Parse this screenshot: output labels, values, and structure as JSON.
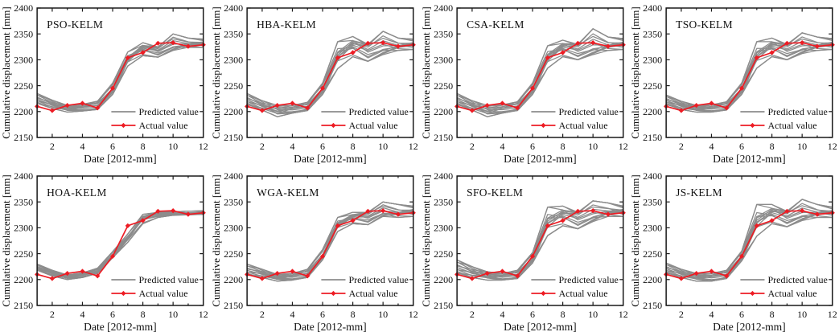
{
  "figure": {
    "description": "Grid of eight cumulative displacement prediction charts for KELM model variants"
  },
  "chart_data": {
    "type": "line",
    "grid_rows": 2,
    "grid_cols": 4,
    "x": [
      1,
      2,
      3,
      4,
      5,
      6,
      7,
      8,
      9,
      10,
      11,
      12
    ],
    "xlabel": "Date [2012-mm]",
    "ylabel": "Cumulative displacement [mm]",
    "xlim": [
      1,
      12
    ],
    "ylim": [
      2150,
      2400
    ],
    "x_ticks": [
      2,
      4,
      6,
      8,
      10,
      12
    ],
    "x_minor_ticks": [
      1,
      3,
      5,
      7,
      9,
      11
    ],
    "y_ticks": [
      2150,
      2200,
      2250,
      2300,
      2350,
      2400
    ],
    "grid_lines": "off",
    "legend": [
      "Predicted value",
      "Actual value"
    ],
    "legend_position": "lower-right",
    "colors": {
      "predicted": "#8c8c8c",
      "actual": "#ed1c24",
      "axis": "#1a1a1a",
      "text": "#111111",
      "background": "#ffffff"
    },
    "actual": [
      2210,
      2202,
      2212,
      2216,
      2207,
      2245,
      2304,
      2314,
      2332,
      2333,
      2326,
      2329
    ],
    "predicted_ensemble_lines": 14,
    "subplots": [
      {
        "title": "PSO-KELM",
        "predicted_band_min": [
          2216,
          2206,
          2199,
          2201,
          2204,
          2233,
          2288,
          2308,
          2305,
          2318,
          2324,
          2324
        ],
        "predicted_band_max": [
          2235,
          2222,
          2212,
          2214,
          2220,
          2255,
          2315,
          2333,
          2325,
          2350,
          2342,
          2340
        ]
      },
      {
        "title": "HBA-KELM",
        "predicted_band_min": [
          2214,
          2203,
          2190,
          2197,
          2202,
          2233,
          2283,
          2306,
          2297,
          2310,
          2318,
          2320
        ],
        "predicted_band_max": [
          2235,
          2221,
          2212,
          2212,
          2218,
          2255,
          2335,
          2345,
          2330,
          2355,
          2342,
          2340
        ]
      },
      {
        "title": "CSA-KELM",
        "predicted_band_min": [
          2214,
          2203,
          2190,
          2197,
          2202,
          2233,
          2284,
          2306,
          2300,
          2310,
          2318,
          2320
        ],
        "predicted_band_max": [
          2235,
          2221,
          2212,
          2213,
          2219,
          2255,
          2327,
          2338,
          2330,
          2360,
          2344,
          2341
        ]
      },
      {
        "title": "TSO-KELM",
        "predicted_band_min": [
          2214,
          2204,
          2199,
          2199,
          2203,
          2233,
          2284,
          2306,
          2300,
          2312,
          2318,
          2320
        ],
        "predicted_band_max": [
          2232,
          2220,
          2212,
          2213,
          2219,
          2255,
          2335,
          2342,
          2330,
          2352,
          2344,
          2341
        ]
      },
      {
        "title": "HOA-KELM",
        "predicted_band_min": [
          2218,
          2207,
          2200,
          2204,
          2212,
          2242,
          2272,
          2308,
          2320,
          2324,
          2325,
          2326
        ],
        "predicted_band_max": [
          2230,
          2218,
          2209,
          2213,
          2222,
          2254,
          2288,
          2326,
          2330,
          2331,
          2332,
          2333
        ]
      },
      {
        "title": "WGA-KELM",
        "predicted_band_min": [
          2209,
          2204,
          2197,
          2199,
          2204,
          2238,
          2293,
          2308,
          2306,
          2322,
          2320,
          2322
        ],
        "predicted_band_max": [
          2230,
          2220,
          2210,
          2212,
          2220,
          2258,
          2320,
          2330,
          2330,
          2350,
          2345,
          2342
        ]
      },
      {
        "title": "SFO-KELM",
        "predicted_band_min": [
          2213,
          2204,
          2199,
          2199,
          2202,
          2232,
          2285,
          2304,
          2298,
          2312,
          2322,
          2322
        ],
        "predicted_band_max": [
          2238,
          2225,
          2215,
          2212,
          2218,
          2252,
          2340,
          2342,
          2330,
          2352,
          2348,
          2342
        ]
      },
      {
        "title": "JS-KELM",
        "predicted_band_min": [
          2213,
          2204,
          2197,
          2197,
          2202,
          2236,
          2284,
          2308,
          2302,
          2314,
          2320,
          2320
        ],
        "predicted_band_max": [
          2232,
          2220,
          2212,
          2212,
          2218,
          2255,
          2345,
          2345,
          2332,
          2355,
          2345,
          2340
        ]
      }
    ]
  }
}
